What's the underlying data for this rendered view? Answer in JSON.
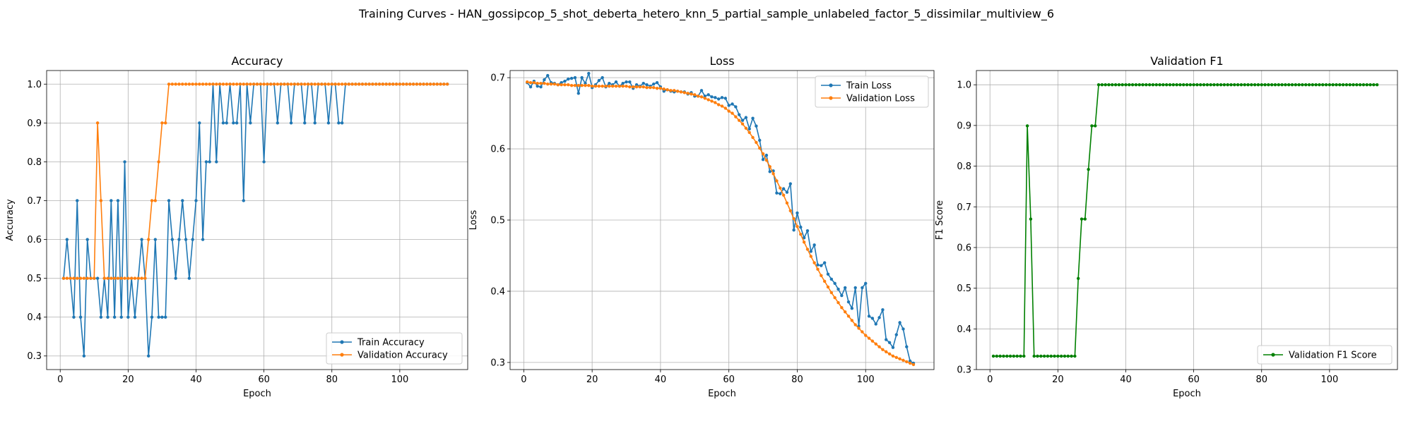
{
  "suptitle": "Training Curves - HAN_gossipcop_5_shot_deberta_hetero_knn_5_partial_sample_unlabeled_factor_5_dissimilar_multiview_6",
  "colors": {
    "blue": "#1f77b4",
    "orange": "#ff7f0e",
    "green": "#008000",
    "grid": "#b0b0b0"
  },
  "chart_data": [
    {
      "type": "line",
      "title": "Accuracy",
      "xlabel": "Epoch",
      "ylabel": "Accuracy",
      "xlim": [
        -4,
        120
      ],
      "ylim": [
        0.265,
        1.035
      ],
      "xticks": [
        0,
        20,
        40,
        60,
        80,
        100
      ],
      "yticks": [
        0.3,
        0.4,
        0.5,
        0.6,
        0.7,
        0.8,
        0.9,
        1.0
      ],
      "grid": true,
      "legend_position": "lower-right",
      "x": [
        1,
        2,
        3,
        4,
        5,
        6,
        7,
        8,
        9,
        10,
        11,
        12,
        13,
        14,
        15,
        16,
        17,
        18,
        19,
        20,
        21,
        22,
        23,
        24,
        25,
        26,
        27,
        28,
        29,
        30,
        31,
        32,
        33,
        34,
        35,
        36,
        37,
        38,
        39,
        40,
        41,
        42,
        43,
        44,
        45,
        46,
        47,
        48,
        49,
        50,
        51,
        52,
        53,
        54,
        55,
        56,
        57,
        58,
        59,
        60,
        61,
        62,
        63,
        64,
        65,
        66,
        67,
        68,
        69,
        70,
        71,
        72,
        73,
        74,
        75,
        76,
        77,
        78,
        79,
        80,
        81,
        82,
        83,
        84,
        85,
        86,
        87,
        88,
        89,
        90,
        91,
        92,
        93,
        94,
        95,
        96,
        97,
        98,
        99,
        100,
        101,
        102,
        103,
        104,
        105,
        106,
        107,
        108,
        109,
        110,
        111,
        112,
        113,
        114
      ],
      "series": [
        {
          "name": "Train Accuracy",
          "color": "#1f77b4",
          "values": [
            0.5,
            0.6,
            0.5,
            0.4,
            0.7,
            0.4,
            0.3,
            0.6,
            0.5,
            0.5,
            0.5,
            0.4,
            0.5,
            0.4,
            0.7,
            0.4,
            0.7,
            0.4,
            0.8,
            0.4,
            0.5,
            0.4,
            0.5,
            0.6,
            0.5,
            0.3,
            0.4,
            0.6,
            0.4,
            0.4,
            0.4,
            0.7,
            0.6,
            0.5,
            0.6,
            0.7,
            0.6,
            0.5,
            0.6,
            0.7,
            0.9,
            0.6,
            0.8,
            0.8,
            1.0,
            0.8,
            1.0,
            0.9,
            0.9,
            1.0,
            0.9,
            0.9,
            1.0,
            0.7,
            1.0,
            0.9,
            1.0,
            1.0,
            1.0,
            0.8,
            1.0,
            1.0,
            1.0,
            0.9,
            1.0,
            1.0,
            1.0,
            0.9,
            1.0,
            1.0,
            1.0,
            0.9,
            1.0,
            1.0,
            0.9,
            1.0,
            1.0,
            1.0,
            0.9,
            1.0,
            1.0,
            0.9,
            0.9,
            1.0,
            1.0,
            1.0,
            1.0,
            1.0,
            1.0,
            1.0,
            1.0,
            1.0,
            1.0,
            1.0,
            1.0,
            1.0,
            1.0,
            1.0,
            1.0,
            1.0,
            1.0,
            1.0,
            1.0,
            1.0,
            1.0,
            1.0,
            1.0,
            1.0,
            1.0,
            1.0,
            1.0,
            1.0,
            1.0,
            1.0
          ]
        },
        {
          "name": "Validation Accuracy",
          "color": "#ff7f0e",
          "values": [
            0.5,
            0.5,
            0.5,
            0.5,
            0.5,
            0.5,
            0.5,
            0.5,
            0.5,
            0.5,
            0.9,
            0.7,
            0.5,
            0.5,
            0.5,
            0.5,
            0.5,
            0.5,
            0.5,
            0.5,
            0.5,
            0.5,
            0.5,
            0.5,
            0.5,
            0.6,
            0.7,
            0.7,
            0.8,
            0.9,
            0.9,
            1.0,
            1.0,
            1.0,
            1.0,
            1.0,
            1.0,
            1.0,
            1.0,
            1.0,
            1.0,
            1.0,
            1.0,
            1.0,
            1.0,
            1.0,
            1.0,
            1.0,
            1.0,
            1.0,
            1.0,
            1.0,
            1.0,
            1.0,
            1.0,
            1.0,
            1.0,
            1.0,
            1.0,
            1.0,
            1.0,
            1.0,
            1.0,
            1.0,
            1.0,
            1.0,
            1.0,
            1.0,
            1.0,
            1.0,
            1.0,
            1.0,
            1.0,
            1.0,
            1.0,
            1.0,
            1.0,
            1.0,
            1.0,
            1.0,
            1.0,
            1.0,
            1.0,
            1.0,
            1.0,
            1.0,
            1.0,
            1.0,
            1.0,
            1.0,
            1.0,
            1.0,
            1.0,
            1.0,
            1.0,
            1.0,
            1.0,
            1.0,
            1.0,
            1.0,
            1.0,
            1.0,
            1.0,
            1.0,
            1.0,
            1.0,
            1.0,
            1.0,
            1.0,
            1.0,
            1.0,
            1.0,
            1.0,
            1.0
          ]
        }
      ]
    },
    {
      "type": "line",
      "title": "Loss",
      "xlabel": "Epoch",
      "ylabel": "Loss",
      "xlim": [
        -4,
        120
      ],
      "ylim": [
        0.29,
        0.71
      ],
      "xticks": [
        0,
        20,
        40,
        60,
        80,
        100
      ],
      "yticks": [
        0.3,
        0.4,
        0.5,
        0.6,
        0.7
      ],
      "grid": true,
      "legend_position": "top-right",
      "x": [
        1,
        2,
        3,
        4,
        5,
        6,
        7,
        8,
        9,
        10,
        11,
        12,
        13,
        14,
        15,
        16,
        17,
        18,
        19,
        20,
        21,
        22,
        23,
        24,
        25,
        26,
        27,
        28,
        29,
        30,
        31,
        32,
        33,
        34,
        35,
        36,
        37,
        38,
        39,
        40,
        41,
        42,
        43,
        44,
        45,
        46,
        47,
        48,
        49,
        50,
        51,
        52,
        53,
        54,
        55,
        56,
        57,
        58,
        59,
        60,
        61,
        62,
        63,
        64,
        65,
        66,
        67,
        68,
        69,
        70,
        71,
        72,
        73,
        74,
        75,
        76,
        77,
        78,
        79,
        80,
        81,
        82,
        83,
        84,
        85,
        86,
        87,
        88,
        89,
        90,
        91,
        92,
        93,
        94,
        95,
        96,
        97,
        98,
        99,
        100,
        101,
        102,
        103,
        104,
        105,
        106,
        107,
        108,
        109,
        110,
        111,
        112,
        113,
        114
      ],
      "series": [
        {
          "name": "Train Loss",
          "color": "#1f77b4",
          "values": [
            0.693,
            0.687,
            0.695,
            0.688,
            0.687,
            0.697,
            0.703,
            0.693,
            0.692,
            0.69,
            0.693,
            0.695,
            0.698,
            0.699,
            0.7,
            0.678,
            0.7,
            0.692,
            0.706,
            0.686,
            0.69,
            0.696,
            0.7,
            0.687,
            0.692,
            0.69,
            0.694,
            0.688,
            0.692,
            0.694,
            0.694,
            0.685,
            0.69,
            0.688,
            0.692,
            0.69,
            0.688,
            0.691,
            0.693,
            0.687,
            0.681,
            0.683,
            0.681,
            0.68,
            0.681,
            0.68,
            0.68,
            0.677,
            0.679,
            0.674,
            0.674,
            0.682,
            0.674,
            0.676,
            0.673,
            0.672,
            0.67,
            0.672,
            0.671,
            0.661,
            0.663,
            0.659,
            0.648,
            0.64,
            0.644,
            0.628,
            0.643,
            0.632,
            0.612,
            0.585,
            0.591,
            0.568,
            0.569,
            0.538,
            0.537,
            0.544,
            0.539,
            0.551,
            0.486,
            0.51,
            0.49,
            0.475,
            0.485,
            0.456,
            0.465,
            0.437,
            0.436,
            0.44,
            0.424,
            0.417,
            0.411,
            0.403,
            0.394,
            0.405,
            0.385,
            0.376,
            0.405,
            0.351,
            0.405,
            0.411,
            0.365,
            0.362,
            0.354,
            0.363,
            0.374,
            0.332,
            0.328,
            0.321,
            0.339,
            0.356,
            0.347,
            0.322,
            0.302,
            0.299
          ]
        },
        {
          "name": "Validation Loss",
          "color": "#ff7f0e",
          "values": [
            0.694,
            0.693,
            0.693,
            0.692,
            0.692,
            0.692,
            0.691,
            0.691,
            0.691,
            0.69,
            0.69,
            0.69,
            0.69,
            0.689,
            0.689,
            0.689,
            0.689,
            0.689,
            0.689,
            0.688,
            0.688,
            0.688,
            0.688,
            0.688,
            0.688,
            0.688,
            0.688,
            0.688,
            0.688,
            0.688,
            0.687,
            0.687,
            0.687,
            0.687,
            0.687,
            0.686,
            0.686,
            0.686,
            0.685,
            0.685,
            0.684,
            0.683,
            0.682,
            0.682,
            0.681,
            0.68,
            0.679,
            0.678,
            0.677,
            0.676,
            0.674,
            0.673,
            0.671,
            0.669,
            0.667,
            0.665,
            0.662,
            0.66,
            0.657,
            0.653,
            0.65,
            0.645,
            0.64,
            0.635,
            0.629,
            0.623,
            0.616,
            0.609,
            0.601,
            0.593,
            0.584,
            0.575,
            0.565,
            0.555,
            0.545,
            0.535,
            0.524,
            0.513,
            0.502,
            0.491,
            0.48,
            0.469,
            0.459,
            0.449,
            0.44,
            0.431,
            0.422,
            0.414,
            0.406,
            0.398,
            0.391,
            0.384,
            0.377,
            0.371,
            0.365,
            0.359,
            0.353,
            0.348,
            0.343,
            0.338,
            0.334,
            0.33,
            0.326,
            0.322,
            0.318,
            0.315,
            0.312,
            0.309,
            0.307,
            0.305,
            0.303,
            0.301,
            0.299,
            0.297
          ]
        }
      ]
    },
    {
      "type": "line",
      "title": "Validation F1",
      "xlabel": "Epoch",
      "ylabel": "F1 Score",
      "xlim": [
        -4,
        120
      ],
      "ylim": [
        0.3,
        1.035
      ],
      "xticks": [
        0,
        20,
        40,
        60,
        80,
        100
      ],
      "yticks": [
        0.3,
        0.4,
        0.5,
        0.6,
        0.7,
        0.8,
        0.9,
        1.0
      ],
      "grid": true,
      "legend_position": "lower-right",
      "x": [
        1,
        2,
        3,
        4,
        5,
        6,
        7,
        8,
        9,
        10,
        11,
        12,
        13,
        14,
        15,
        16,
        17,
        18,
        19,
        20,
        21,
        22,
        23,
        24,
        25,
        26,
        27,
        28,
        29,
        30,
        31,
        32,
        33,
        34,
        35,
        36,
        37,
        38,
        39,
        40,
        41,
        42,
        43,
        44,
        45,
        46,
        47,
        48,
        49,
        50,
        51,
        52,
        53,
        54,
        55,
        56,
        57,
        58,
        59,
        60,
        61,
        62,
        63,
        64,
        65,
        66,
        67,
        68,
        69,
        70,
        71,
        72,
        73,
        74,
        75,
        76,
        77,
        78,
        79,
        80,
        81,
        82,
        83,
        84,
        85,
        86,
        87,
        88,
        89,
        90,
        91,
        92,
        93,
        94,
        95,
        96,
        97,
        98,
        99,
        100,
        101,
        102,
        103,
        104,
        105,
        106,
        107,
        108,
        109,
        110,
        111,
        112,
        113,
        114
      ],
      "series": [
        {
          "name": "Validation F1 Score",
          "color": "#008000",
          "values": [
            0.333,
            0.333,
            0.333,
            0.333,
            0.333,
            0.333,
            0.333,
            0.333,
            0.333,
            0.333,
            0.899,
            0.67,
            0.333,
            0.333,
            0.333,
            0.333,
            0.333,
            0.333,
            0.333,
            0.333,
            0.333,
            0.333,
            0.333,
            0.333,
            0.333,
            0.524,
            0.67,
            0.67,
            0.792,
            0.899,
            0.899,
            1.0,
            1.0,
            1.0,
            1.0,
            1.0,
            1.0,
            1.0,
            1.0,
            1.0,
            1.0,
            1.0,
            1.0,
            1.0,
            1.0,
            1.0,
            1.0,
            1.0,
            1.0,
            1.0,
            1.0,
            1.0,
            1.0,
            1.0,
            1.0,
            1.0,
            1.0,
            1.0,
            1.0,
            1.0,
            1.0,
            1.0,
            1.0,
            1.0,
            1.0,
            1.0,
            1.0,
            1.0,
            1.0,
            1.0,
            1.0,
            1.0,
            1.0,
            1.0,
            1.0,
            1.0,
            1.0,
            1.0,
            1.0,
            1.0,
            1.0,
            1.0,
            1.0,
            1.0,
            1.0,
            1.0,
            1.0,
            1.0,
            1.0,
            1.0,
            1.0,
            1.0,
            1.0,
            1.0,
            1.0,
            1.0,
            1.0,
            1.0,
            1.0,
            1.0,
            1.0,
            1.0,
            1.0,
            1.0,
            1.0,
            1.0,
            1.0,
            1.0,
            1.0,
            1.0,
            1.0,
            1.0,
            1.0,
            1.0
          ]
        }
      ]
    }
  ]
}
